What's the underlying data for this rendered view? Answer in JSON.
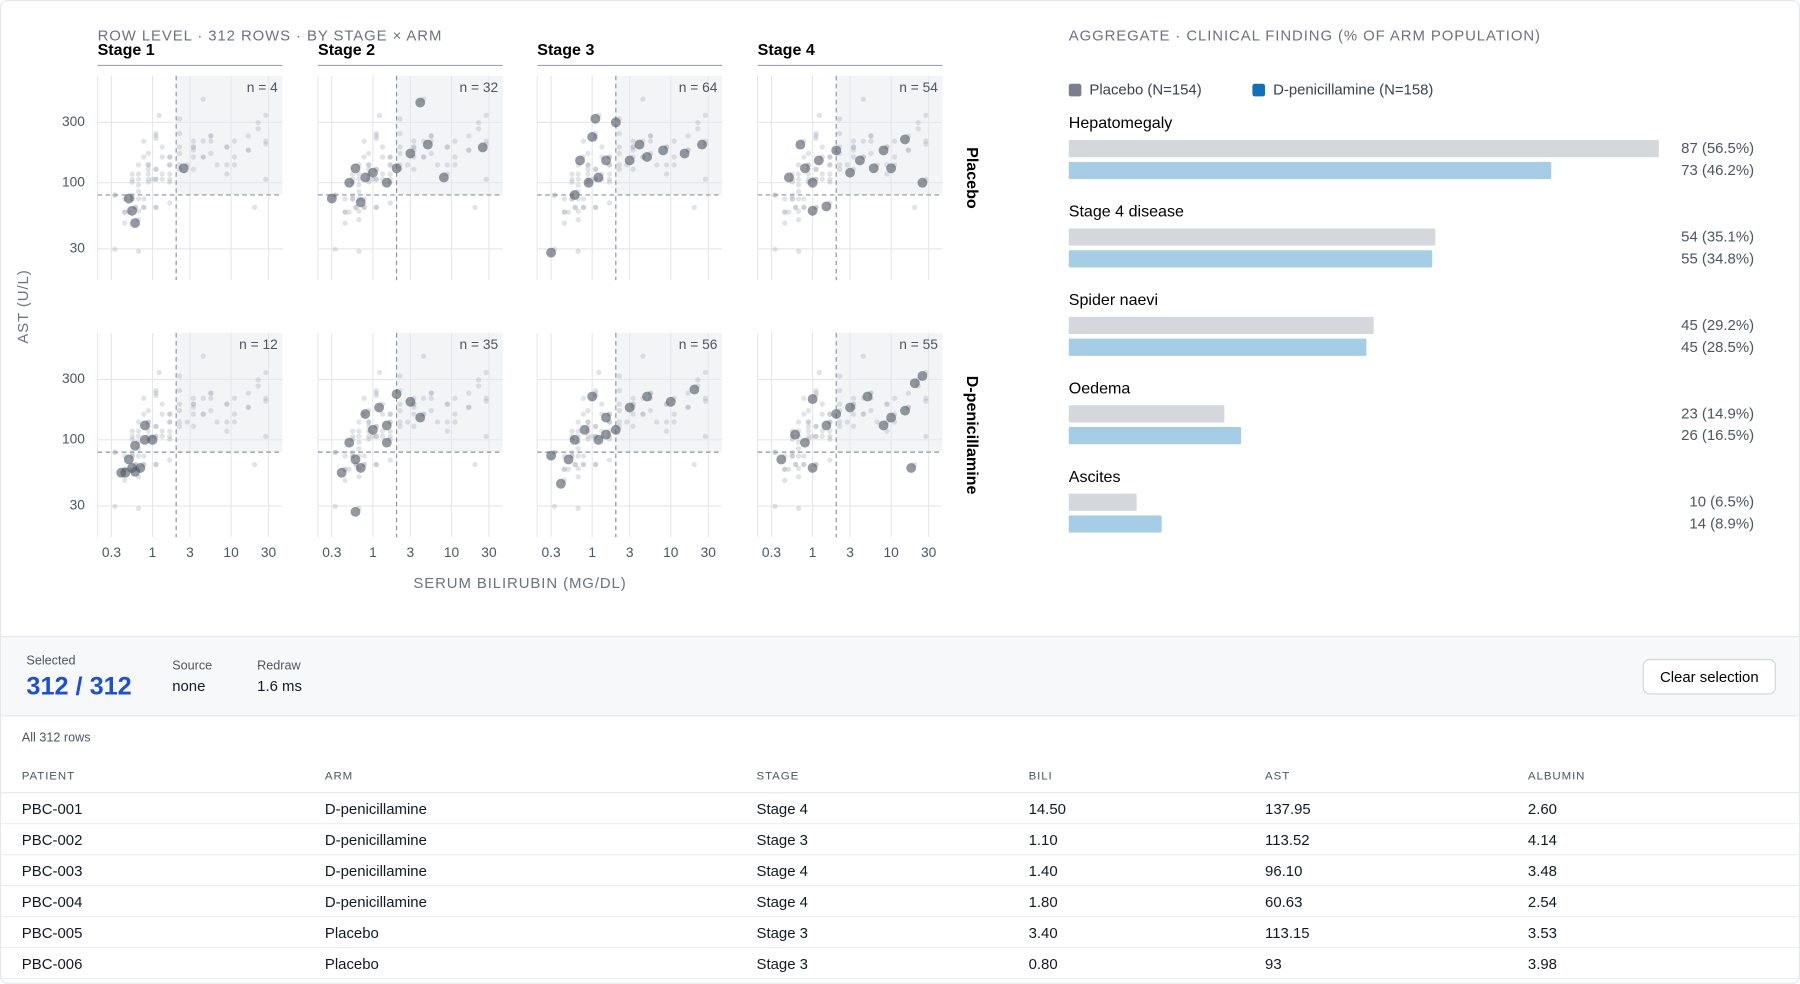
{
  "chart_data": [
    {
      "type": "scatter",
      "title": "ROW LEVEL · 312 ROWS · BY STAGE × ARM",
      "x_label": "SERUM BILIRUBIN (MG/DL)",
      "y_label": "AST (U/L)",
      "log_scale": true,
      "grid": true,
      "xlim": [
        0.2,
        45
      ],
      "ylim": [
        17,
        700
      ],
      "xticks": [
        0.3,
        1,
        3,
        10,
        30
      ],
      "yticks": [
        30,
        100,
        300
      ],
      "x_threshold": 2,
      "y_threshold": 80,
      "point_color": "#4b5563",
      "shade_color": "#f3f4f6",
      "columns": [
        "Stage 1",
        "Stage 2",
        "Stage 3",
        "Stage 4"
      ],
      "rows": [
        "Placebo",
        "D-penicillamine"
      ],
      "panels": [
        {
          "n_label": "n = 4",
          "x": [
            0.5,
            0.55,
            0.6,
            2.5
          ],
          "y": [
            75,
            60,
            48,
            130
          ]
        },
        {
          "n_label": "n = 32",
          "x": [
            0.3,
            0.5,
            0.6,
            0.7,
            0.8,
            1,
            1.5,
            2,
            3,
            5,
            8,
            25,
            4
          ],
          "y": [
            75,
            100,
            130,
            70,
            110,
            120,
            100,
            130,
            170,
            200,
            110,
            190,
            430
          ]
        },
        {
          "n_label": "n = 64",
          "x": [
            0.3,
            0.6,
            0.7,
            0.9,
            1,
            1.2,
            1.5,
            2,
            3,
            4,
            5,
            8,
            15,
            25,
            1.1
          ],
          "y": [
            28,
            80,
            150,
            100,
            230,
            110,
            150,
            300,
            150,
            200,
            160,
            180,
            170,
            200,
            320
          ]
        },
        {
          "n_label": "n = 54",
          "x": [
            0.5,
            0.7,
            0.8,
            1,
            1.2,
            1.5,
            2,
            3,
            4,
            6,
            8,
            10,
            15,
            25,
            1
          ],
          "y": [
            110,
            200,
            130,
            100,
            150,
            65,
            180,
            120,
            150,
            130,
            180,
            130,
            220,
            100,
            60
          ]
        },
        {
          "n_label": "n = 12",
          "x": [
            0.4,
            0.45,
            0.5,
            0.55,
            0.6,
            0.7,
            0.8,
            1,
            0.8,
            0.6
          ],
          "y": [
            55,
            55,
            70,
            60,
            56,
            60,
            100,
            100,
            130,
            90
          ]
        },
        {
          "n_label": "n = 35",
          "x": [
            0.4,
            0.5,
            0.6,
            0.7,
            0.8,
            1,
            1.2,
            1.5,
            2,
            3,
            4,
            0.6,
            1.5
          ],
          "y": [
            55,
            95,
            70,
            60,
            160,
            120,
            180,
            130,
            230,
            200,
            150,
            27,
            95
          ]
        },
        {
          "n_label": "n = 56",
          "x": [
            0.3,
            0.4,
            0.6,
            0.8,
            1,
            1.2,
            1.5,
            2,
            3,
            5,
            10,
            20,
            0.5,
            1.5
          ],
          "y": [
            75,
            45,
            100,
            120,
            220,
            100,
            150,
            120,
            180,
            220,
            200,
            250,
            70,
            110
          ]
        },
        {
          "n_label": "n = 55",
          "x": [
            0.4,
            0.6,
            0.8,
            1,
            1.5,
            2,
            3,
            5,
            8,
            10,
            15,
            20,
            25,
            1,
            18
          ],
          "y": [
            70,
            110,
            95,
            210,
            130,
            160,
            180,
            220,
            130,
            150,
            170,
            280,
            320,
            60,
            60
          ]
        }
      ]
    },
    {
      "type": "bar",
      "orientation": "horizontal",
      "title": "AGGREGATE · CLINICAL FINDING (% OF ARM POPULATION)",
      "legend": "top-left",
      "categories": [
        "Hepatomegaly",
        "Stage 4 disease",
        "Spider naevi",
        "Oedema",
        "Ascites"
      ],
      "xlim": [
        0,
        56.5
      ],
      "series": [
        {
          "name": "Placebo (N=154)",
          "color": "#7a808a",
          "bar_color": "#d4d7db",
          "values": [
            56.5,
            35.1,
            29.2,
            14.9,
            6.5
          ],
          "value_labels": [
            "87 (56.5%)",
            "54 (35.1%)",
            "45 (29.2%)",
            "23 (14.9%)",
            "10 (6.5%)"
          ]
        },
        {
          "name": "D-penicillamine (N=158)",
          "color": "#1170b8",
          "bar_color": "#a6cde6",
          "values": [
            46.2,
            34.8,
            28.5,
            16.5,
            8.9
          ],
          "value_labels": [
            "73 (46.2%)",
            "55 (34.8%)",
            "45 (28.5%)",
            "26 (16.5%)",
            "14 (8.9%)"
          ]
        }
      ]
    }
  ],
  "status": {
    "selected_label": "Selected",
    "selected_value": "312 / 312",
    "source_label": "Source",
    "source_value": "none",
    "redraw_label": "Redraw",
    "redraw_value": "1.6 ms",
    "button": "Clear selection"
  },
  "table": {
    "caption": "All 312 rows",
    "headers": [
      "PATIENT",
      "ARM",
      "STAGE",
      "BILI",
      "AST",
      "ALBUMIN"
    ],
    "rows": [
      [
        "PBC-001",
        "D-penicillamine",
        "Stage 4",
        "14.50",
        "137.95",
        "2.60"
      ],
      [
        "PBC-002",
        "D-penicillamine",
        "Stage 3",
        "1.10",
        "113.52",
        "4.14"
      ],
      [
        "PBC-003",
        "D-penicillamine",
        "Stage 4",
        "1.40",
        "96.10",
        "3.48"
      ],
      [
        "PBC-004",
        "D-penicillamine",
        "Stage 4",
        "1.80",
        "60.63",
        "2.54"
      ],
      [
        "PBC-005",
        "Placebo",
        "Stage 3",
        "3.40",
        "113.15",
        "3.53"
      ],
      [
        "PBC-006",
        "Placebo",
        "Stage 3",
        "0.80",
        "93",
        "3.98"
      ]
    ]
  }
}
